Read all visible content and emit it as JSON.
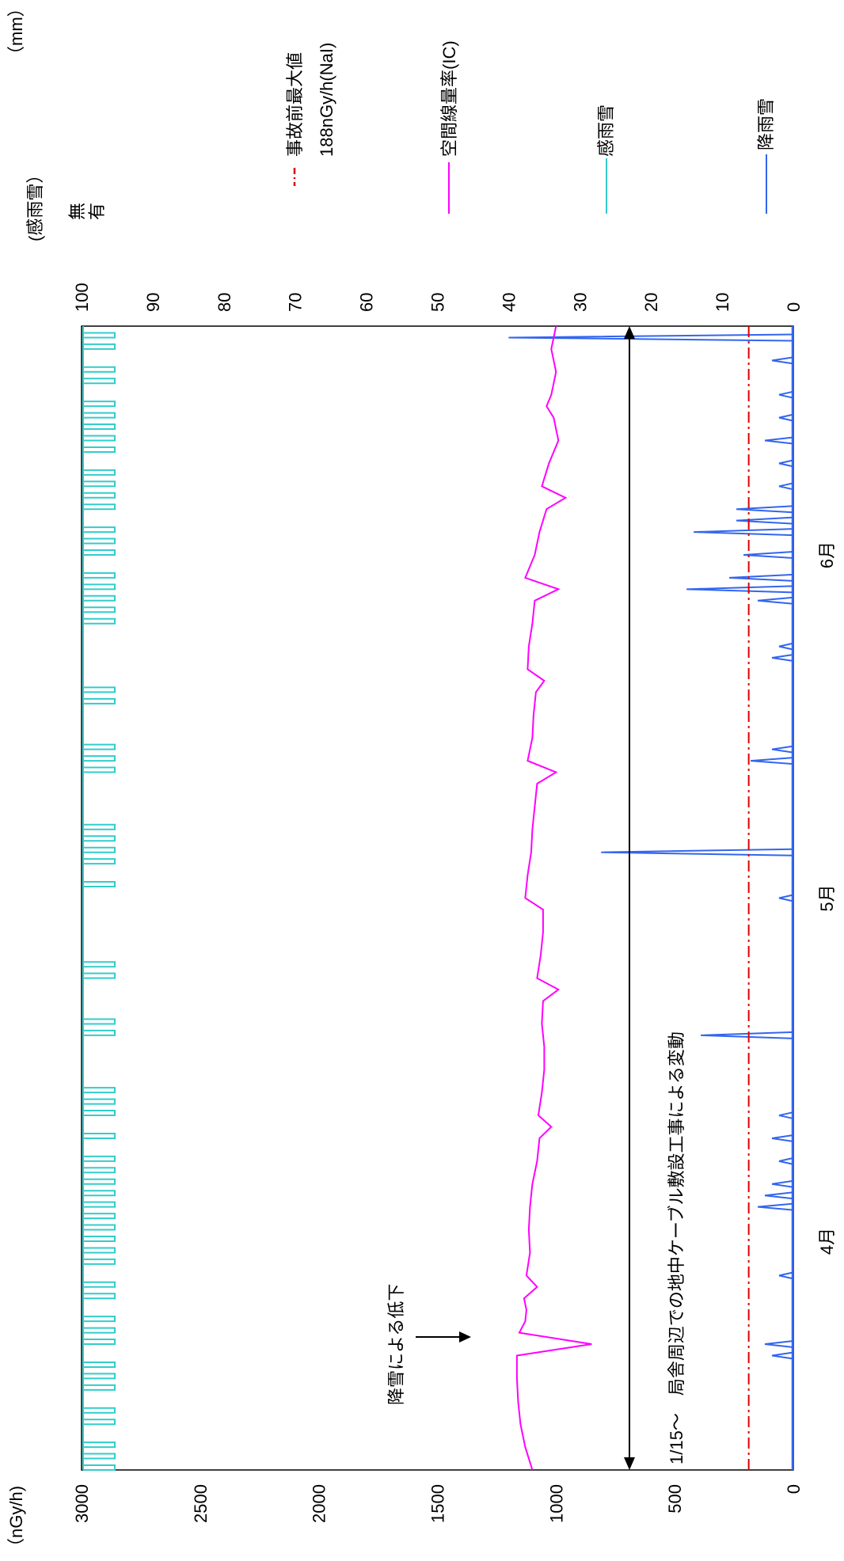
{
  "chart_data": {
    "type": "line",
    "left_axis_unit": "（nGy/h)",
    "right_axis_unit": "（mm）",
    "right_axis_sensor_unit": "(感雨雪）",
    "sensor_levels": [
      "無",
      "有"
    ],
    "left_axis_ticks": [
      "0",
      "500",
      "1000",
      "1500",
      "2000",
      "2500",
      "3000"
    ],
    "right_axis_ticks": [
      "0",
      "10",
      "20",
      "30",
      "40",
      "50",
      "60",
      "70",
      "80",
      "90",
      "100"
    ],
    "ylim_left": [
      0,
      3000
    ],
    "ylim_right": [
      0,
      100
    ],
    "month_labels": [
      "4月",
      "5月",
      "6月"
    ],
    "month_positions": [
      0.2,
      0.5,
      0.8
    ],
    "legend": [
      {
        "label": "事故前最大値",
        "sublabel": "188nGy/h(NaI)",
        "color": "#e00000",
        "style": "dashdot"
      },
      {
        "label": "空間線量率(IC)",
        "color": "#ff00ff",
        "style": "solid"
      },
      {
        "label": "感雨雪",
        "color": "#33cccc",
        "style": "solid"
      },
      {
        "label": "降雨雪",
        "color": "#3366ee",
        "style": "solid"
      }
    ],
    "reference_line": {
      "value": 188,
      "axis": "left"
    },
    "annotations": {
      "snow_drop": "降雪による低下",
      "construction": "1/15～　局舎周辺での地中ケーブル敷設工事による変動"
    },
    "dose_rate_series": {
      "name": "空間線量率(IC)",
      "axis": "left",
      "x": [
        0.0,
        0.02,
        0.04,
        0.06,
        0.08,
        0.09,
        0.1,
        0.11,
        0.12,
        0.13,
        0.14,
        0.15,
        0.16,
        0.17,
        0.19,
        0.21,
        0.23,
        0.25,
        0.27,
        0.29,
        0.3,
        0.31,
        0.33,
        0.35,
        0.37,
        0.39,
        0.41,
        0.42,
        0.43,
        0.45,
        0.47,
        0.49,
        0.5,
        0.52,
        0.54,
        0.56,
        0.58,
        0.6,
        0.61,
        0.62,
        0.64,
        0.66,
        0.68,
        0.69,
        0.7,
        0.72,
        0.74,
        0.76,
        0.77,
        0.78,
        0.8,
        0.82,
        0.84,
        0.85,
        0.86,
        0.88,
        0.9,
        0.92,
        0.93,
        0.94,
        0.96,
        0.98,
        1.0
      ],
      "y": [
        1100,
        1130,
        1150,
        1160,
        1165,
        1165,
        1165,
        850,
        1155,
        1130,
        1125,
        1135,
        1080,
        1125,
        1110,
        1115,
        1110,
        1100,
        1080,
        1070,
        1020,
        1075,
        1060,
        1050,
        1050,
        1060,
        1055,
        990,
        1080,
        1065,
        1055,
        1055,
        1130,
        1120,
        1105,
        1100,
        1090,
        1080,
        1000,
        1120,
        1100,
        1095,
        1085,
        1050,
        1120,
        1115,
        1100,
        1090,
        990,
        1130,
        1090,
        1070,
        1040,
        960,
        1060,
        1030,
        990,
        1010,
        1040,
        1020,
        1000,
        1020,
        1000
      ]
    },
    "precip_series": {
      "name": "降雨雪",
      "axis": "right",
      "x": [
        0.1,
        0.11,
        0.17,
        0.23,
        0.24,
        0.25,
        0.27,
        0.29,
        0.31,
        0.38,
        0.5,
        0.54,
        0.62,
        0.63,
        0.71,
        0.72,
        0.76,
        0.77,
        0.78,
        0.8,
        0.82,
        0.83,
        0.84,
        0.86,
        0.88,
        0.9,
        0.92,
        0.94,
        0.97,
        0.99
      ],
      "y": [
        3,
        4,
        2,
        5,
        4,
        3,
        2,
        3,
        2,
        13,
        2,
        27,
        6,
        3,
        3,
        2,
        5,
        15,
        9,
        7,
        14,
        8,
        8,
        2,
        2,
        4,
        2,
        2,
        3,
        40
      ]
    },
    "sensor_series": {
      "name": "感雨雪",
      "axis": "right",
      "x": [
        0.0,
        0.01,
        0.02,
        0.04,
        0.05,
        0.07,
        0.08,
        0.09,
        0.11,
        0.12,
        0.13,
        0.15,
        0.16,
        0.18,
        0.19,
        0.2,
        0.21,
        0.22,
        0.23,
        0.24,
        0.25,
        0.26,
        0.27,
        0.29,
        0.31,
        0.32,
        0.33,
        0.38,
        0.39,
        0.43,
        0.44,
        0.51,
        0.53,
        0.54,
        0.55,
        0.56,
        0.61,
        0.62,
        0.63,
        0.67,
        0.68,
        0.74,
        0.75,
        0.76,
        0.77,
        0.78,
        0.8,
        0.81,
        0.82,
        0.84,
        0.85,
        0.86,
        0.87,
        0.89,
        0.9,
        0.91,
        0.92,
        0.93,
        0.95,
        0.96,
        0.98,
        0.99
      ],
      "y": [
        1,
        1,
        1,
        1,
        1,
        1,
        1,
        1,
        1,
        1,
        1,
        1,
        1,
        1,
        1,
        1,
        1,
        1,
        1,
        1,
        1,
        1,
        1,
        1,
        1,
        1,
        1,
        1,
        1,
        1,
        1,
        1,
        1,
        1,
        1,
        1,
        1,
        1,
        1,
        1,
        1,
        1,
        1,
        1,
        1,
        1,
        1,
        1,
        1,
        1,
        1,
        1,
        1,
        1,
        1,
        1,
        1,
        1,
        1,
        1,
        1,
        1
      ]
    }
  }
}
